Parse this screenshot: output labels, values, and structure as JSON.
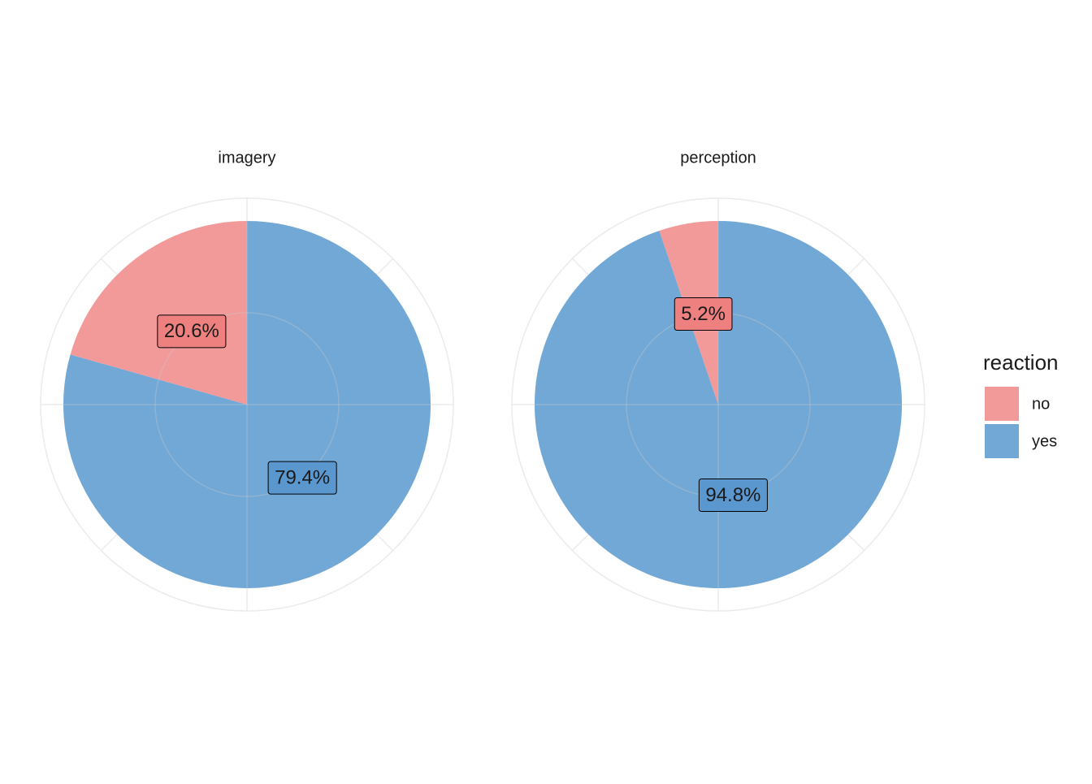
{
  "chart_data": {
    "type": "pie",
    "legend_title": "reaction",
    "categories": [
      "no",
      "yes"
    ],
    "colors": [
      "#f29a9a",
      "#72a8d6"
    ],
    "label_colors": [
      "#ee8080",
      "#5b97cf"
    ],
    "facets": [
      {
        "title": "imagery",
        "values": [
          20.6,
          79.4
        ],
        "value_labels": [
          "20.6%",
          "79.4%"
        ]
      },
      {
        "title": "perception",
        "values": [
          5.2,
          94.8
        ],
        "value_labels": [
          "5.2%",
          "94.8%"
        ]
      }
    ]
  }
}
